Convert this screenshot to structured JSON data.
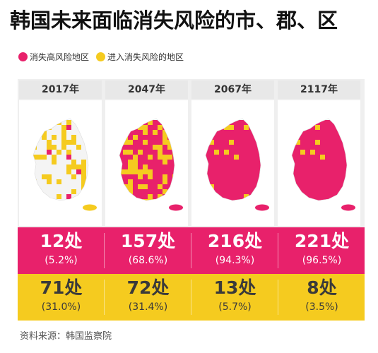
{
  "title": "韩国未来面临消失风险的市、郡、区",
  "legend": {
    "high_risk": "消失高风险地区",
    "entering": "进入消失风险的地区"
  },
  "colors": {
    "high_risk": "#e8216b",
    "entering": "#f5cb1f"
  },
  "years": [
    "2017年",
    "2047年",
    "2067年",
    "2117年"
  ],
  "maps": [
    {
      "label": "2017年",
      "high_risk_share": 0.052,
      "entering_share": 0.31
    },
    {
      "label": "2047年",
      "high_risk_share": 0.686,
      "entering_share": 0.314
    },
    {
      "label": "2067年",
      "high_risk_share": 0.943,
      "entering_share": 0.057
    },
    {
      "label": "2117年",
      "high_risk_share": 0.965,
      "entering_share": 0.035
    }
  ],
  "high_risk_row": [
    {
      "count": "12处",
      "pct": "(5.2%)"
    },
    {
      "count": "157处",
      "pct": "(68.6%)"
    },
    {
      "count": "216处",
      "pct": "(94.3%)"
    },
    {
      "count": "221处",
      "pct": "(96.5%)"
    }
  ],
  "entering_row": [
    {
      "count": "71处",
      "pct": "(31.0%)"
    },
    {
      "count": "72处",
      "pct": "(31.4%)"
    },
    {
      "count": "13处",
      "pct": "(5.7%)"
    },
    {
      "count": "8处",
      "pct": "(3.5%)"
    }
  ],
  "source": "资料来源：韩国监察院"
}
